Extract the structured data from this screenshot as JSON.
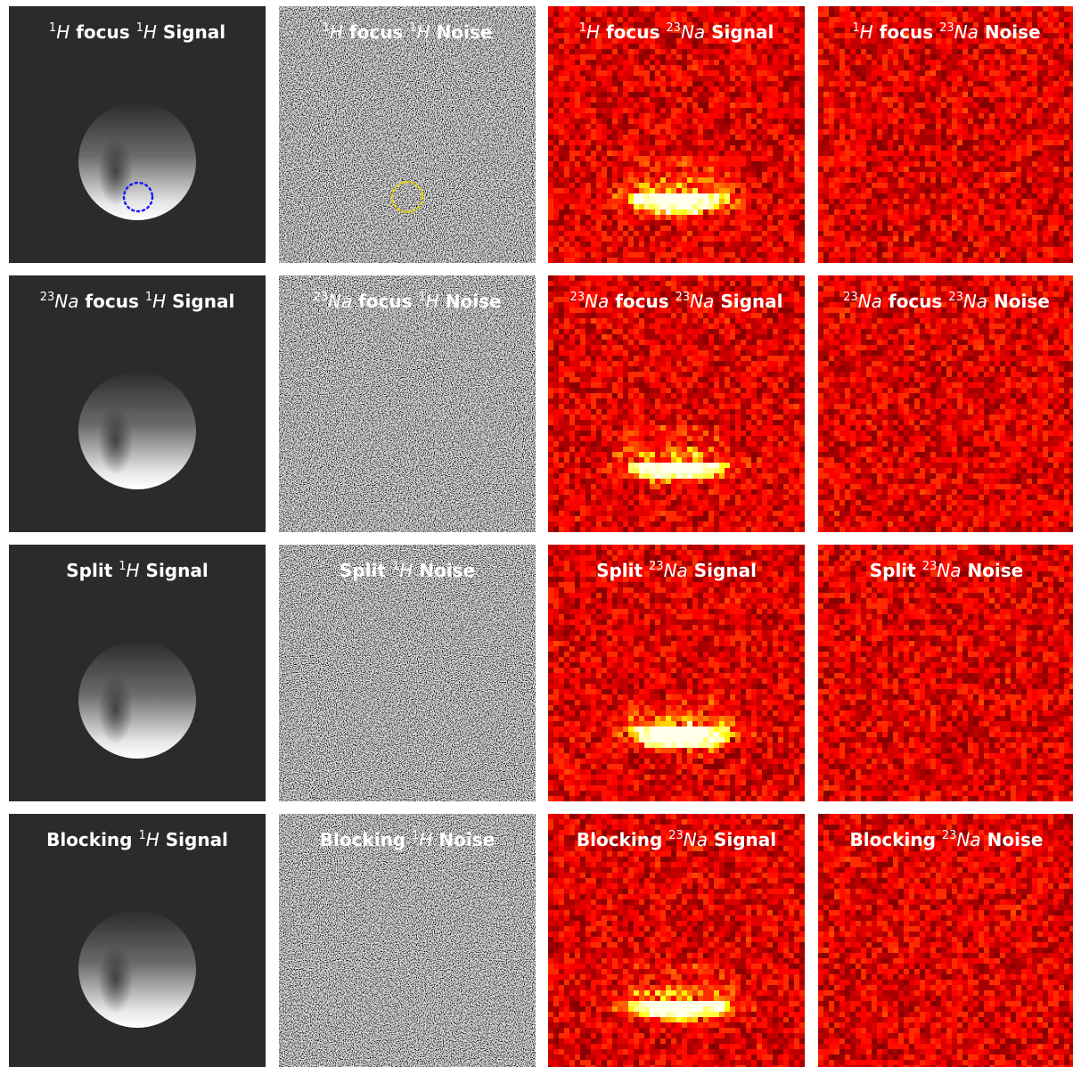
{
  "panels": [
    [
      {
        "title": [
          {
            "sup": "1",
            "nuc": "H"
          },
          "focus",
          {
            "sup": "1",
            "nuc": "H"
          },
          "Signal"
        ]
      },
      {
        "title": [
          {
            "sup": "1",
            "nuc": "H"
          },
          "focus",
          {
            "sup": "1",
            "nuc": "H"
          },
          "Noise"
        ]
      },
      {
        "title": [
          {
            "sup": "1",
            "nuc": "H"
          },
          "focus",
          {
            "sup": "23",
            "nuc": "Na"
          },
          "Signal"
        ]
      },
      {
        "title": [
          {
            "sup": "1",
            "nuc": "H"
          },
          "focus",
          {
            "sup": "23",
            "nuc": "Na"
          },
          "Noise"
        ]
      }
    ],
    [
      {
        "title": [
          {
            "sup": "23",
            "nuc": "Na"
          },
          "focus",
          {
            "sup": "1",
            "nuc": "H"
          },
          "Signal"
        ]
      },
      {
        "title": [
          {
            "sup": "23",
            "nuc": "Na"
          },
          "focus",
          {
            "sup": "1",
            "nuc": "H"
          },
          "Noise"
        ]
      },
      {
        "title": [
          {
            "sup": "23",
            "nuc": "Na"
          },
          "focus",
          {
            "sup": "23",
            "nuc": "Na"
          },
          "Signal"
        ]
      },
      {
        "title": [
          {
            "sup": "23",
            "nuc": "Na"
          },
          "focus",
          {
            "sup": "23",
            "nuc": "Na"
          },
          "Noise"
        ]
      }
    ],
    [
      {
        "title": [
          "Split",
          {
            "sup": "1",
            "nuc": "H"
          },
          "Signal"
        ]
      },
      {
        "title": [
          "Split",
          {
            "sup": "1",
            "nuc": "H"
          },
          "Noise"
        ]
      },
      {
        "title": [
          "Split",
          {
            "sup": "23",
            "nuc": "Na"
          },
          "Signal"
        ]
      },
      {
        "title": [
          "Split",
          {
            "sup": "23",
            "nuc": "Na"
          },
          "Noise"
        ]
      }
    ],
    [
      {
        "title": [
          "Blocking",
          {
            "sup": "1",
            "nuc": "H"
          },
          "Signal"
        ]
      },
      {
        "title": [
          "Blocking",
          {
            "sup": "1",
            "nuc": "H"
          },
          "Noise"
        ]
      },
      {
        "title": [
          "Blocking",
          {
            "sup": "23",
            "nuc": "Na"
          },
          "Signal"
        ]
      },
      {
        "title": [
          "Blocking",
          {
            "sup": "23",
            "nuc": "Na"
          },
          "Noise"
        ]
      }
    ]
  ]
}
